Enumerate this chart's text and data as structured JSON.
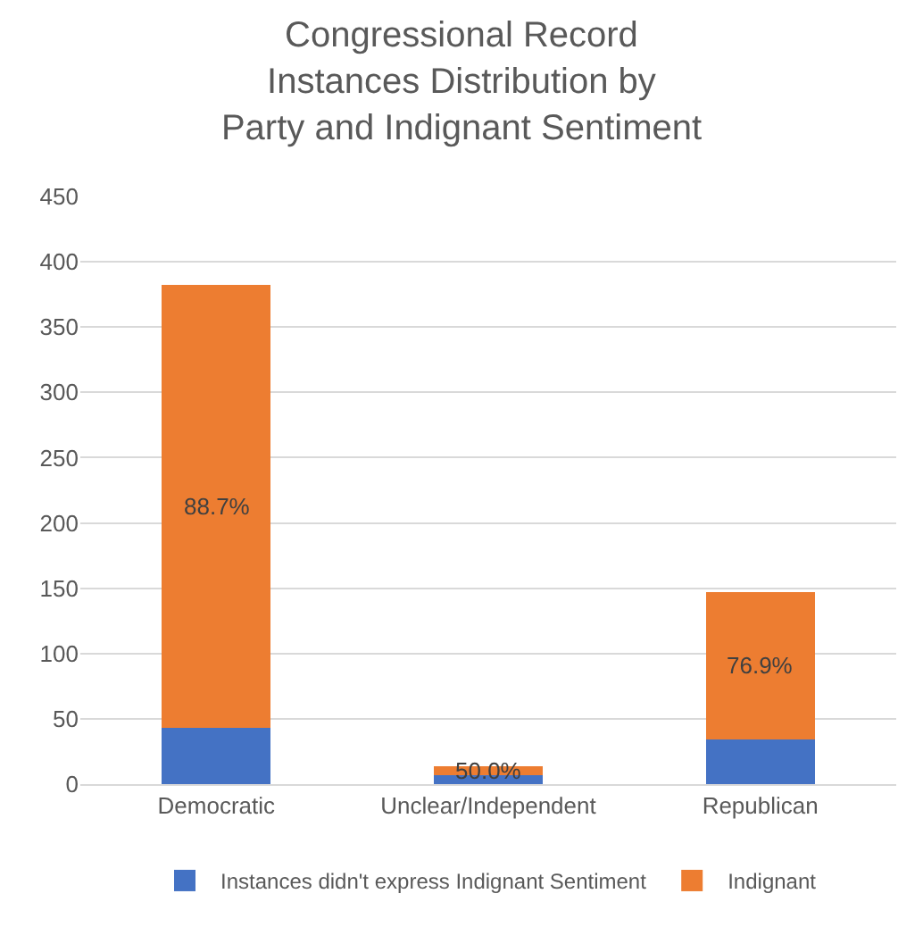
{
  "chart_data": {
    "type": "bar",
    "stacked": true,
    "title": "Congressional Record\nInstances Distribution by\nParty and Indignant Sentiment",
    "categories": [
      "Democratic",
      "Unclear/Independent",
      "Republican"
    ],
    "series": [
      {
        "name": "Instances didn't express Indignant Sentiment",
        "color": "#4472c4",
        "values": [
          43,
          7,
          34
        ]
      },
      {
        "name": "Indignant",
        "color": "#ed7d31",
        "values": [
          339,
          7,
          113
        ]
      }
    ],
    "annotations": [
      "88.7%",
      "50.0%",
      "76.9%"
    ],
    "ylim": [
      0,
      450
    ],
    "yticks": [
      0,
      50,
      100,
      150,
      200,
      250,
      300,
      350,
      400,
      450
    ],
    "grid": "y",
    "legend": "bottom"
  }
}
